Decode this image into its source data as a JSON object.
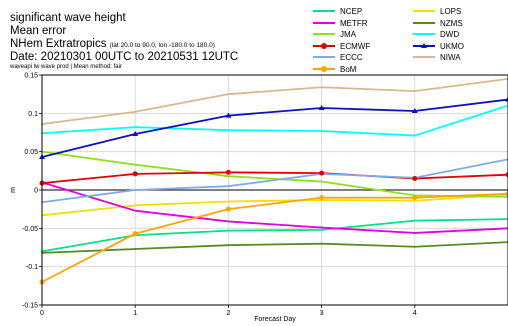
{
  "header": {
    "title": "significant wave height",
    "metric": "Mean error",
    "region": "NHem Extratropics",
    "region_detail": "(lat  20.0 to 90.0, lon  -180.0 to  180.0)",
    "date": "Date: 20210301 00UTC to 20210531 12UTC",
    "subtitle": "waveapi lw wave prod | Mean method: fair"
  },
  "legend": [
    {
      "name": "NCEP",
      "color": "#00e08a",
      "marker": "none"
    },
    {
      "name": "LOPS",
      "color": "#f0e000",
      "marker": "none"
    },
    {
      "name": "METFR",
      "color": "#e000e0",
      "marker": "none"
    },
    {
      "name": "NZMS",
      "color": "#5a8a28",
      "marker": "none"
    },
    {
      "name": "JMA",
      "color": "#90e020",
      "marker": "none"
    },
    {
      "name": "DWD",
      "color": "#00ffff",
      "marker": "none"
    },
    {
      "name": "ECMWF",
      "color": "#e00000",
      "marker": "circle"
    },
    {
      "name": "UKMO",
      "color": "#1010c0",
      "marker": "tri"
    },
    {
      "name": "ECCC",
      "color": "#80aaee",
      "marker": "none"
    },
    {
      "name": "NIWA",
      "color": "#d8b890",
      "marker": "none"
    },
    {
      "name": "BoM",
      "color": "#ffa500",
      "marker": "circle"
    }
  ],
  "chart_data": {
    "type": "line",
    "title": "significant wave height",
    "xlabel": "Forecast Day",
    "ylabel": "m",
    "x": [
      0,
      1,
      2,
      3,
      4,
      5
    ],
    "xlim": [
      0,
      5
    ],
    "ylim": [
      -0.15,
      0.15
    ],
    "xticks": [
      "0",
      "1",
      "2",
      "3",
      "4"
    ],
    "yticks": [
      "-0.15",
      "-0.1",
      "-0.05",
      "0",
      "0.05",
      "0.1",
      "0.15"
    ],
    "grid": true,
    "series": [
      {
        "name": "NCEP",
        "color": "#00e08a",
        "values": [
          -0.08,
          -0.059,
          -0.053,
          -0.052,
          -0.04,
          -0.038
        ]
      },
      {
        "name": "LOPS",
        "color": "#f0e000",
        "values": [
          -0.033,
          -0.02,
          -0.015,
          -0.013,
          -0.014,
          -0.006
        ]
      },
      {
        "name": "METFR",
        "color": "#e000e0",
        "values": [
          0.01,
          -0.027,
          -0.041,
          -0.049,
          -0.056,
          -0.05
        ]
      },
      {
        "name": "NZMS",
        "color": "#5a8a28",
        "values": [
          -0.082,
          -0.077,
          -0.072,
          -0.07,
          -0.074,
          -0.068
        ]
      },
      {
        "name": "JMA",
        "color": "#90e020",
        "values": [
          0.05,
          0.033,
          0.018,
          0.011,
          -0.007,
          -0.009
        ]
      },
      {
        "name": "DWD",
        "color": "#00ffff",
        "values": [
          0.074,
          0.082,
          0.078,
          0.077,
          0.071,
          0.11
        ]
      },
      {
        "name": "ECMWF",
        "color": "#e00000",
        "values": [
          0.009,
          0.021,
          0.023,
          0.022,
          0.015,
          0.02
        ]
      },
      {
        "name": "UKMO",
        "color": "#1010c0",
        "values": [
          0.043,
          0.073,
          0.097,
          0.107,
          0.103,
          0.118
        ]
      },
      {
        "name": "ECCC",
        "color": "#80aaee",
        "values": [
          -0.016,
          0.0,
          0.005,
          0.021,
          0.016,
          0.04
        ]
      },
      {
        "name": "NIWA",
        "color": "#d8b890",
        "values": [
          0.086,
          0.102,
          0.125,
          0.134,
          0.129,
          0.145
        ]
      },
      {
        "name": "BoM",
        "color": "#ffa500",
        "values": [
          -0.12,
          -0.057,
          -0.025,
          -0.01,
          -0.01,
          -0.005
        ]
      }
    ]
  }
}
